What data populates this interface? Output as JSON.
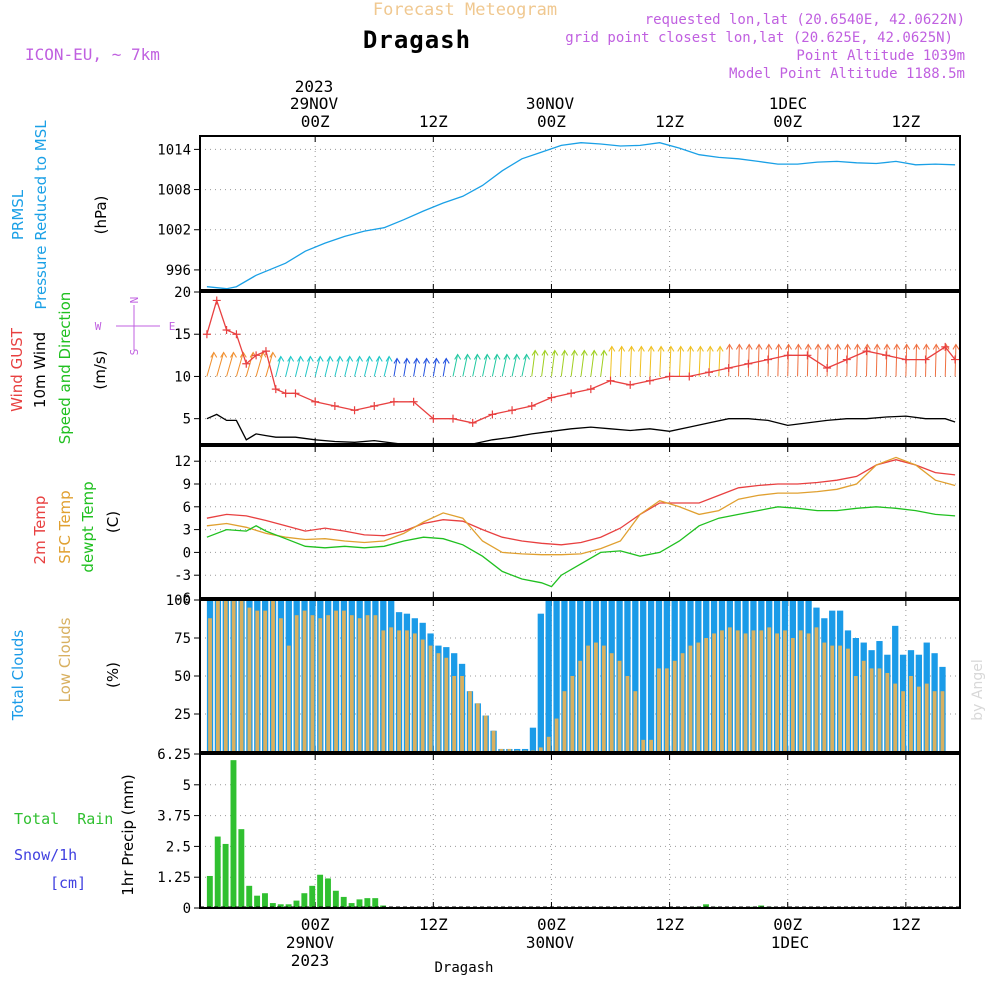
{
  "header": {
    "title": "Forecast Meteogram",
    "location": "Dragash",
    "model": "ICON-EU, ~ 7km",
    "requested": "requested lon,lat (20.6540E, 42.0622N)",
    "grid": "grid point closest lon,lat (20.625E, 42.0625N)",
    "point_alt": "Point Altitude 1039m",
    "model_alt": "Model Point Altitude 1188.5m",
    "bottom_location": "Dragash",
    "watermark": "by Angel"
  },
  "time_axis": {
    "top_year": "2023",
    "top_dates": [
      "29NOV",
      "30NOV",
      "1DEC"
    ],
    "hour_labels": [
      "00Z",
      "12Z",
      "00Z",
      "12Z",
      "00Z",
      "12Z"
    ],
    "bottom_dates": [
      "29NOV",
      "30NOV",
      "1DEC"
    ],
    "bottom_year": "2023",
    "range_hours": [
      -11.7,
      65.5
    ],
    "tick_hours": [
      0,
      12,
      24,
      36,
      48,
      60
    ]
  },
  "panel_labels": {
    "pressure": [
      "PRMSL",
      "Pressure Reduced to MSL"
    ],
    "pressure_unit": "(hPa)",
    "wind": [
      "Wind GUST",
      "10m Wind",
      "Speed and Direction"
    ],
    "wind_unit": "(m/s)",
    "compass": [
      "N",
      "W",
      "E",
      "S"
    ],
    "temp": [
      "2m Temp",
      "SFC Temp",
      "dewpt Temp"
    ],
    "temp_unit": "(C)",
    "clouds": [
      "Total Clouds",
      "Low Clouds"
    ],
    "clouds_unit": "(%)",
    "precip": [
      "Total  Rain",
      "Snow/1h",
      "[cm]"
    ],
    "precip_unit": "1hr Precip (mm)"
  },
  "colors": {
    "pressure": "#1aa0e6",
    "gust": "#e84040",
    "wind": "#000000",
    "temp2m": "#e84040",
    "sfc": "#e0a030",
    "dewpt": "#20c020",
    "total_clouds": "#1a9be8",
    "low_clouds": "#d8b060",
    "rain": "#30c030",
    "snow": "#4040e0",
    "title": "#f0c890",
    "info": "#c060e0"
  },
  "chart_data": [
    {
      "type": "line",
      "name": "pressure",
      "ylim": [
        993,
        1016
      ],
      "yticks": [
        996,
        1002,
        1008,
        1014
      ],
      "series": [
        {
          "name": "PRMSL",
          "x": [
            -11,
            -9,
            -8,
            -6,
            -3,
            -1,
            1,
            3,
            5,
            7,
            9,
            11,
            13,
            15,
            17,
            19,
            21,
            23,
            25,
            27,
            29,
            31,
            33,
            35,
            37,
            39,
            41,
            43,
            45,
            47,
            49,
            51,
            53,
            55,
            57,
            59,
            61,
            63,
            65
          ],
          "values": [
            993.5,
            993.2,
            993.5,
            995.2,
            997,
            998.8,
            1000,
            1001,
            1001.8,
            1002.3,
            1003.5,
            1004.8,
            1006,
            1007,
            1008.6,
            1010.8,
            1012.6,
            1013.6,
            1014.6,
            1015,
            1014.8,
            1014.5,
            1014.6,
            1015,
            1014.2,
            1013.2,
            1012.8,
            1012.6,
            1012.2,
            1011.8,
            1011.8,
            1012.1,
            1012.2,
            1012,
            1011.9,
            1012.2,
            1011.7,
            1011.8,
            1011.7
          ]
        }
      ]
    },
    {
      "type": "line",
      "name": "wind",
      "ylim": [
        2,
        20
      ],
      "yticks": [
        5,
        10,
        15,
        20
      ],
      "series": [
        {
          "name": "Wind GUST",
          "x": [
            -11,
            -10,
            -9,
            -8,
            -7,
            -6,
            -5,
            -4,
            -3,
            -2,
            0,
            2,
            4,
            6,
            8,
            10,
            12,
            14,
            16,
            18,
            20,
            22,
            24,
            26,
            28,
            30,
            32,
            34,
            36,
            38,
            40,
            42,
            44,
            46,
            48,
            50,
            52,
            54,
            56,
            58,
            60,
            62,
            64,
            65
          ],
          "values": [
            15,
            19,
            15.5,
            15,
            11.5,
            12.5,
            13,
            8.5,
            8,
            8,
            7,
            6.5,
            6,
            6.5,
            7,
            7,
            5,
            5,
            4.5,
            5.5,
            6,
            6.5,
            7.5,
            8,
            8.5,
            9.5,
            9,
            9.5,
            10,
            10,
            10.5,
            11,
            11.5,
            12,
            12.5,
            12.5,
            11,
            12,
            13,
            12.5,
            12,
            12,
            13.5,
            12
          ]
        },
        {
          "name": "10m Wind",
          "x": [
            -11,
            -10,
            -9,
            -8,
            -7,
            -6,
            -5,
            -4,
            -2,
            0,
            2,
            4,
            6,
            8,
            10,
            12,
            14,
            16,
            18,
            20,
            22,
            24,
            26,
            28,
            30,
            32,
            34,
            36,
            38,
            40,
            42,
            44,
            46,
            48,
            50,
            52,
            54,
            56,
            58,
            60,
            62,
            64,
            65
          ],
          "values": [
            5,
            5.5,
            4.8,
            4.8,
            2.5,
            3.2,
            3,
            2.8,
            2.8,
            2.5,
            2.3,
            2.2,
            2.4,
            2.1,
            1.8,
            1.9,
            1.8,
            2,
            2.5,
            2.8,
            3.2,
            3.5,
            3.8,
            4,
            3.8,
            3.6,
            3.8,
            3.5,
            4,
            4.5,
            5,
            5,
            4.8,
            4.2,
            4.5,
            4.8,
            5,
            5,
            5.2,
            5.3,
            5,
            5,
            4.6
          ]
        }
      ]
    },
    {
      "type": "line",
      "name": "temperature",
      "ylim": [
        -6,
        14
      ],
      "yticks": [
        -3,
        0,
        3,
        6,
        9,
        12
      ],
      "series": [
        {
          "name": "2m Temp",
          "x": [
            -11,
            -9,
            -7,
            -5,
            -3,
            -1,
            1,
            3,
            5,
            7,
            9,
            11,
            13,
            15,
            17,
            19,
            21,
            23,
            25,
            27,
            29,
            31,
            33,
            35,
            37,
            39,
            41,
            43,
            45,
            47,
            49,
            51,
            53,
            55,
            57,
            59,
            61,
            63,
            65
          ],
          "values": [
            4.5,
            5,
            4.8,
            4.2,
            3.5,
            2.8,
            3.2,
            2.8,
            2.3,
            2.2,
            2.8,
            3.8,
            4.3,
            4.1,
            3,
            2,
            1.5,
            1.2,
            1,
            1.3,
            2,
            3.2,
            5,
            6.5,
            6.5,
            6.5,
            7.5,
            8.5,
            8.8,
            9,
            9,
            9.2,
            9.5,
            10,
            11.5,
            12.2,
            11.5,
            10.5,
            10.2
          ]
        },
        {
          "name": "SFC Temp",
          "x": [
            -11,
            -9,
            -7,
            -5,
            -3,
            -1,
            1,
            3,
            5,
            7,
            9,
            11,
            13,
            15,
            17,
            19,
            21,
            23,
            25,
            27,
            29,
            31,
            33,
            35,
            37,
            39,
            41,
            43,
            45,
            47,
            49,
            51,
            53,
            55,
            57,
            59,
            61,
            63,
            65
          ],
          "values": [
            3.5,
            3.8,
            3.3,
            2.5,
            2,
            1.7,
            1.8,
            1.5,
            1.3,
            1.5,
            2.5,
            4,
            5.2,
            4.5,
            1.5,
            0,
            -0.2,
            -0.3,
            -0.3,
            -0.2,
            0.5,
            1.5,
            5,
            6.8,
            6,
            5,
            5.5,
            7,
            7.5,
            7.8,
            7.8,
            8,
            8.3,
            9,
            11.5,
            12.5,
            11.5,
            9.5,
            8.8
          ]
        },
        {
          "name": "dewpt Temp",
          "x": [
            -11,
            -9,
            -7,
            -6,
            -5,
            -3,
            -1,
            1,
            3,
            5,
            7,
            9,
            11,
            13,
            15,
            17,
            19,
            21,
            23,
            24,
            25,
            27,
            29,
            31,
            33,
            35,
            37,
            39,
            41,
            43,
            45,
            47,
            49,
            51,
            53,
            55,
            57,
            59,
            61,
            63,
            65
          ],
          "values": [
            2,
            3,
            2.8,
            3.5,
            2.8,
            1.8,
            0.8,
            0.6,
            0.8,
            0.6,
            0.8,
            1.5,
            2,
            1.8,
            1,
            -0.5,
            -2.5,
            -3.5,
            -4,
            -4.5,
            -3,
            -1.5,
            0,
            0.2,
            -0.5,
            0,
            1.5,
            3.5,
            4.5,
            5,
            5.5,
            6,
            5.8,
            5.5,
            5.5,
            5.8,
            6,
            5.8,
            5.5,
            5,
            4.8
          ]
        }
      ]
    },
    {
      "type": "bar",
      "name": "clouds",
      "ylim": [
        0,
        100
      ],
      "yticks": [
        25,
        50,
        75,
        100
      ],
      "x_start": -11,
      "series": [
        {
          "name": "Total Clouds",
          "values": [
            100,
            100,
            100,
            100,
            100,
            100,
            100,
            100,
            100,
            100,
            100,
            100,
            100,
            100,
            100,
            100,
            100,
            100,
            100,
            100,
            100,
            100,
            100,
            100,
            92,
            91,
            88,
            85,
            78,
            70,
            69,
            65,
            58,
            40,
            32,
            24,
            14,
            2,
            2,
            2,
            2,
            16,
            91,
            100,
            100,
            100,
            100,
            100,
            100,
            100,
            100,
            100,
            100,
            100,
            100,
            100,
            100,
            100,
            100,
            100,
            100,
            100,
            100,
            100,
            100,
            100,
            100,
            100,
            100,
            100,
            100,
            100,
            100,
            100,
            100,
            100,
            100,
            95,
            88,
            93,
            93,
            80,
            75,
            72,
            67,
            73,
            64,
            83,
            64,
            67,
            64,
            72,
            65,
            56
          ]
        },
        {
          "name": "Low Clouds",
          "values": [
            88,
            100,
            100,
            100,
            100,
            95,
            93,
            93,
            100,
            88,
            70,
            90,
            93,
            90,
            88,
            90,
            93,
            93,
            90,
            88,
            90,
            90,
            80,
            82,
            80,
            80,
            78,
            74,
            70,
            65,
            62,
            50,
            50,
            40,
            32,
            24,
            14,
            2,
            2,
            1,
            1,
            1,
            3,
            10,
            22,
            40,
            50,
            60,
            70,
            72,
            70,
            65,
            60,
            50,
            40,
            8,
            8,
            55,
            55,
            60,
            65,
            70,
            72,
            75,
            78,
            80,
            82,
            80,
            78,
            80,
            80,
            82,
            78,
            80,
            75,
            80,
            78,
            82,
            72,
            70,
            70,
            68,
            50,
            60,
            55,
            55,
            52,
            45,
            40,
            50,
            43,
            45,
            40,
            40
          ]
        }
      ]
    },
    {
      "type": "bar",
      "name": "precip",
      "ylim": [
        0,
        6.25
      ],
      "yticks": [
        0,
        1.25,
        2.5,
        3.75,
        5,
        6.25
      ],
      "x_start": -11,
      "series": [
        {
          "name": "Total Rain",
          "values": [
            1.3,
            2.9,
            2.6,
            6,
            3.2,
            0.9,
            0.5,
            0.6,
            0.2,
            0.15,
            0.15,
            0.3,
            0.6,
            0.9,
            1.35,
            1.2,
            0.7,
            0.45,
            0.2,
            0.35,
            0.4,
            0.4,
            0.1,
            0,
            0,
            0,
            0,
            0,
            0,
            0,
            0,
            0,
            0,
            0,
            0,
            0,
            0,
            0,
            0,
            0,
            0,
            0,
            0,
            0,
            0,
            0,
            0,
            0,
            0,
            0,
            0,
            0,
            0,
            0,
            0,
            0,
            0,
            0,
            0,
            0,
            0,
            0,
            0.05,
            0.15,
            0.05,
            0,
            0,
            0,
            0,
            0.05,
            0.1,
            0.05,
            0,
            0,
            0,
            0,
            0,
            0,
            0,
            0,
            0,
            0,
            0,
            0,
            0,
            0,
            0,
            0,
            0,
            0,
            0,
            0,
            0,
            0
          ]
        }
      ]
    }
  ]
}
